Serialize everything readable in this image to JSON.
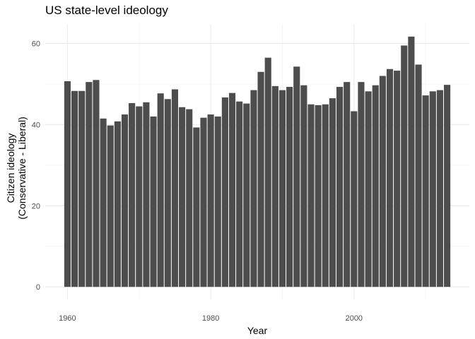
{
  "chart_data": {
    "type": "bar",
    "title": "US state-level ideology",
    "xlabel": "Year",
    "ylabel_lines": [
      "Citizen ideology",
      "(Conservative - Liberal)"
    ],
    "x": [
      1960,
      1961,
      1962,
      1963,
      1964,
      1965,
      1966,
      1967,
      1968,
      1969,
      1970,
      1971,
      1972,
      1973,
      1974,
      1975,
      1976,
      1977,
      1978,
      1979,
      1980,
      1981,
      1982,
      1983,
      1984,
      1985,
      1986,
      1987,
      1988,
      1989,
      1990,
      1991,
      1992,
      1993,
      1994,
      1995,
      1996,
      1997,
      1998,
      1999,
      2000,
      2001,
      2002,
      2003,
      2004,
      2005,
      2006,
      2007,
      2008,
      2009,
      2010,
      2011,
      2012,
      2013
    ],
    "values": [
      50.7,
      48.3,
      48.3,
      50.5,
      51.0,
      41.5,
      39.8,
      40.8,
      42.5,
      45.3,
      44.5,
      45.5,
      42.0,
      47.7,
      46.3,
      48.7,
      44.3,
      43.8,
      39.3,
      41.7,
      42.5,
      42.0,
      46.7,
      47.8,
      45.7,
      45.2,
      48.5,
      53.0,
      56.5,
      49.5,
      48.5,
      49.3,
      54.3,
      49.7,
      45.0,
      44.8,
      45.0,
      46.5,
      49.3,
      50.5,
      43.3,
      50.5,
      48.2,
      49.7,
      52.0,
      53.7,
      53.3,
      59.5,
      61.7,
      54.8,
      47.2,
      48.2,
      48.5,
      49.8
    ],
    "xticks": [
      1960,
      1980,
      2000
    ],
    "xtick_labels": [
      "1960",
      "1980",
      "2000"
    ],
    "yticks": [
      0,
      20,
      40,
      60
    ],
    "ytick_labels": [
      "0",
      "20",
      "40",
      "60"
    ],
    "xlim": [
      1956.9,
      2016.1
    ],
    "ylim": [
      -3.1,
      64.8
    ],
    "bar_color": "#4d4d4d",
    "grid": true,
    "legend": "none"
  }
}
